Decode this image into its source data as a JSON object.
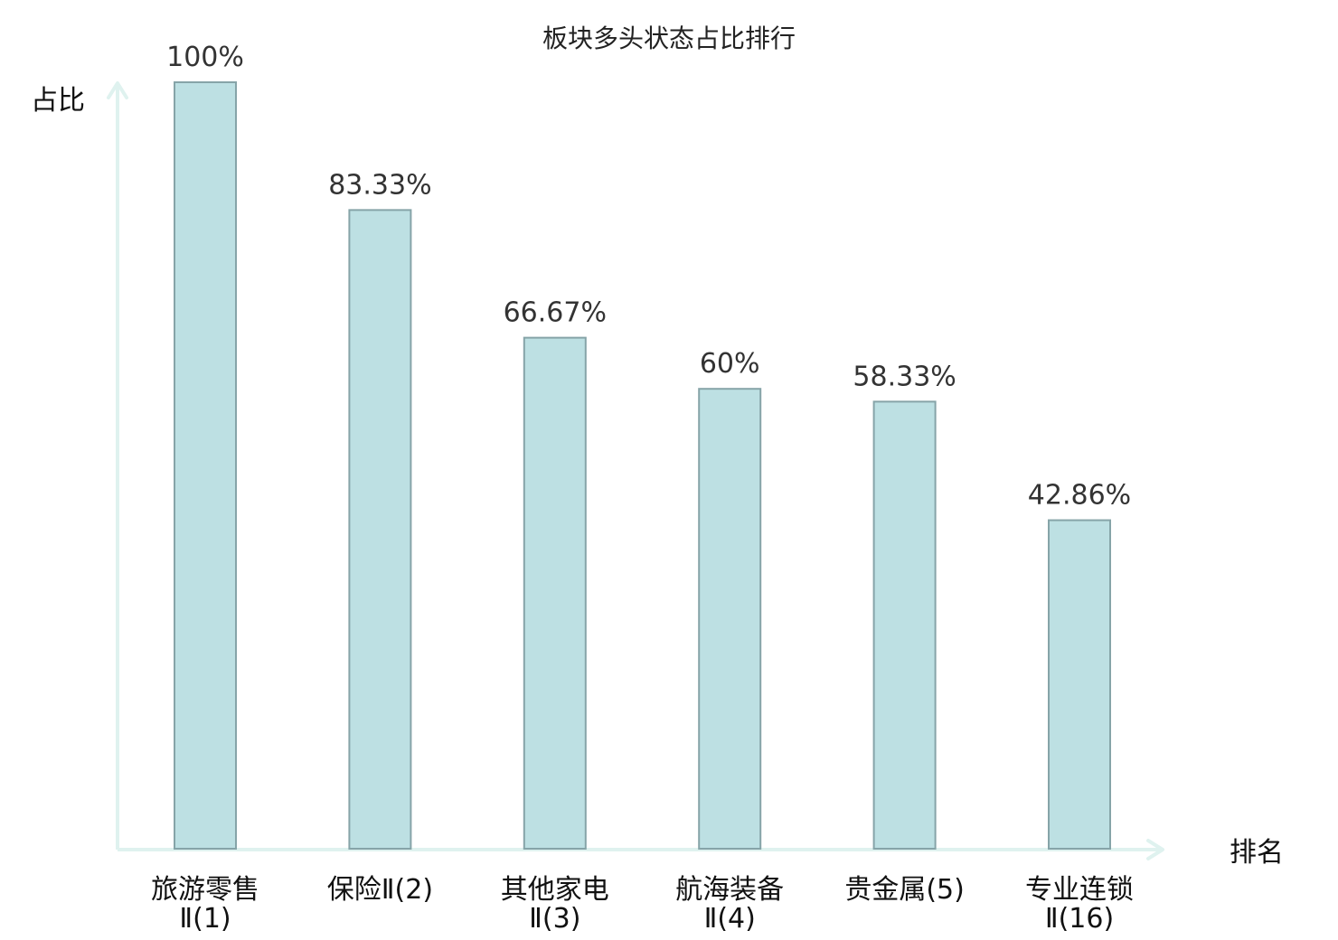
{
  "chart_data": {
    "type": "bar",
    "title": "板块多头状态占比排行",
    "ylabel": "占比",
    "xlabel": "排名",
    "ylim": [
      0,
      100
    ],
    "grid": false,
    "categories": [
      [
        "旅游零售",
        "Ⅱ(1)"
      ],
      [
        "保险Ⅱ(2)"
      ],
      [
        "其他家电",
        "Ⅱ(3)"
      ],
      [
        "航海装备",
        "Ⅱ(4)"
      ],
      [
        "贵金属(5)"
      ],
      [
        "专业连锁",
        "Ⅱ(16)"
      ]
    ],
    "values": [
      100,
      83.33,
      66.67,
      60,
      58.33,
      42.86
    ],
    "value_labels": [
      "100%",
      "83.33%",
      "66.67%",
      "60%",
      "58.33%",
      "42.86%"
    ],
    "highlight_index": 5,
    "colors": {
      "bar_fill": "#bde0e3",
      "bar_stroke": "#86a4a8",
      "axis": "#dff2ef",
      "highlight_text": "#e02020",
      "text": "#111111"
    }
  }
}
